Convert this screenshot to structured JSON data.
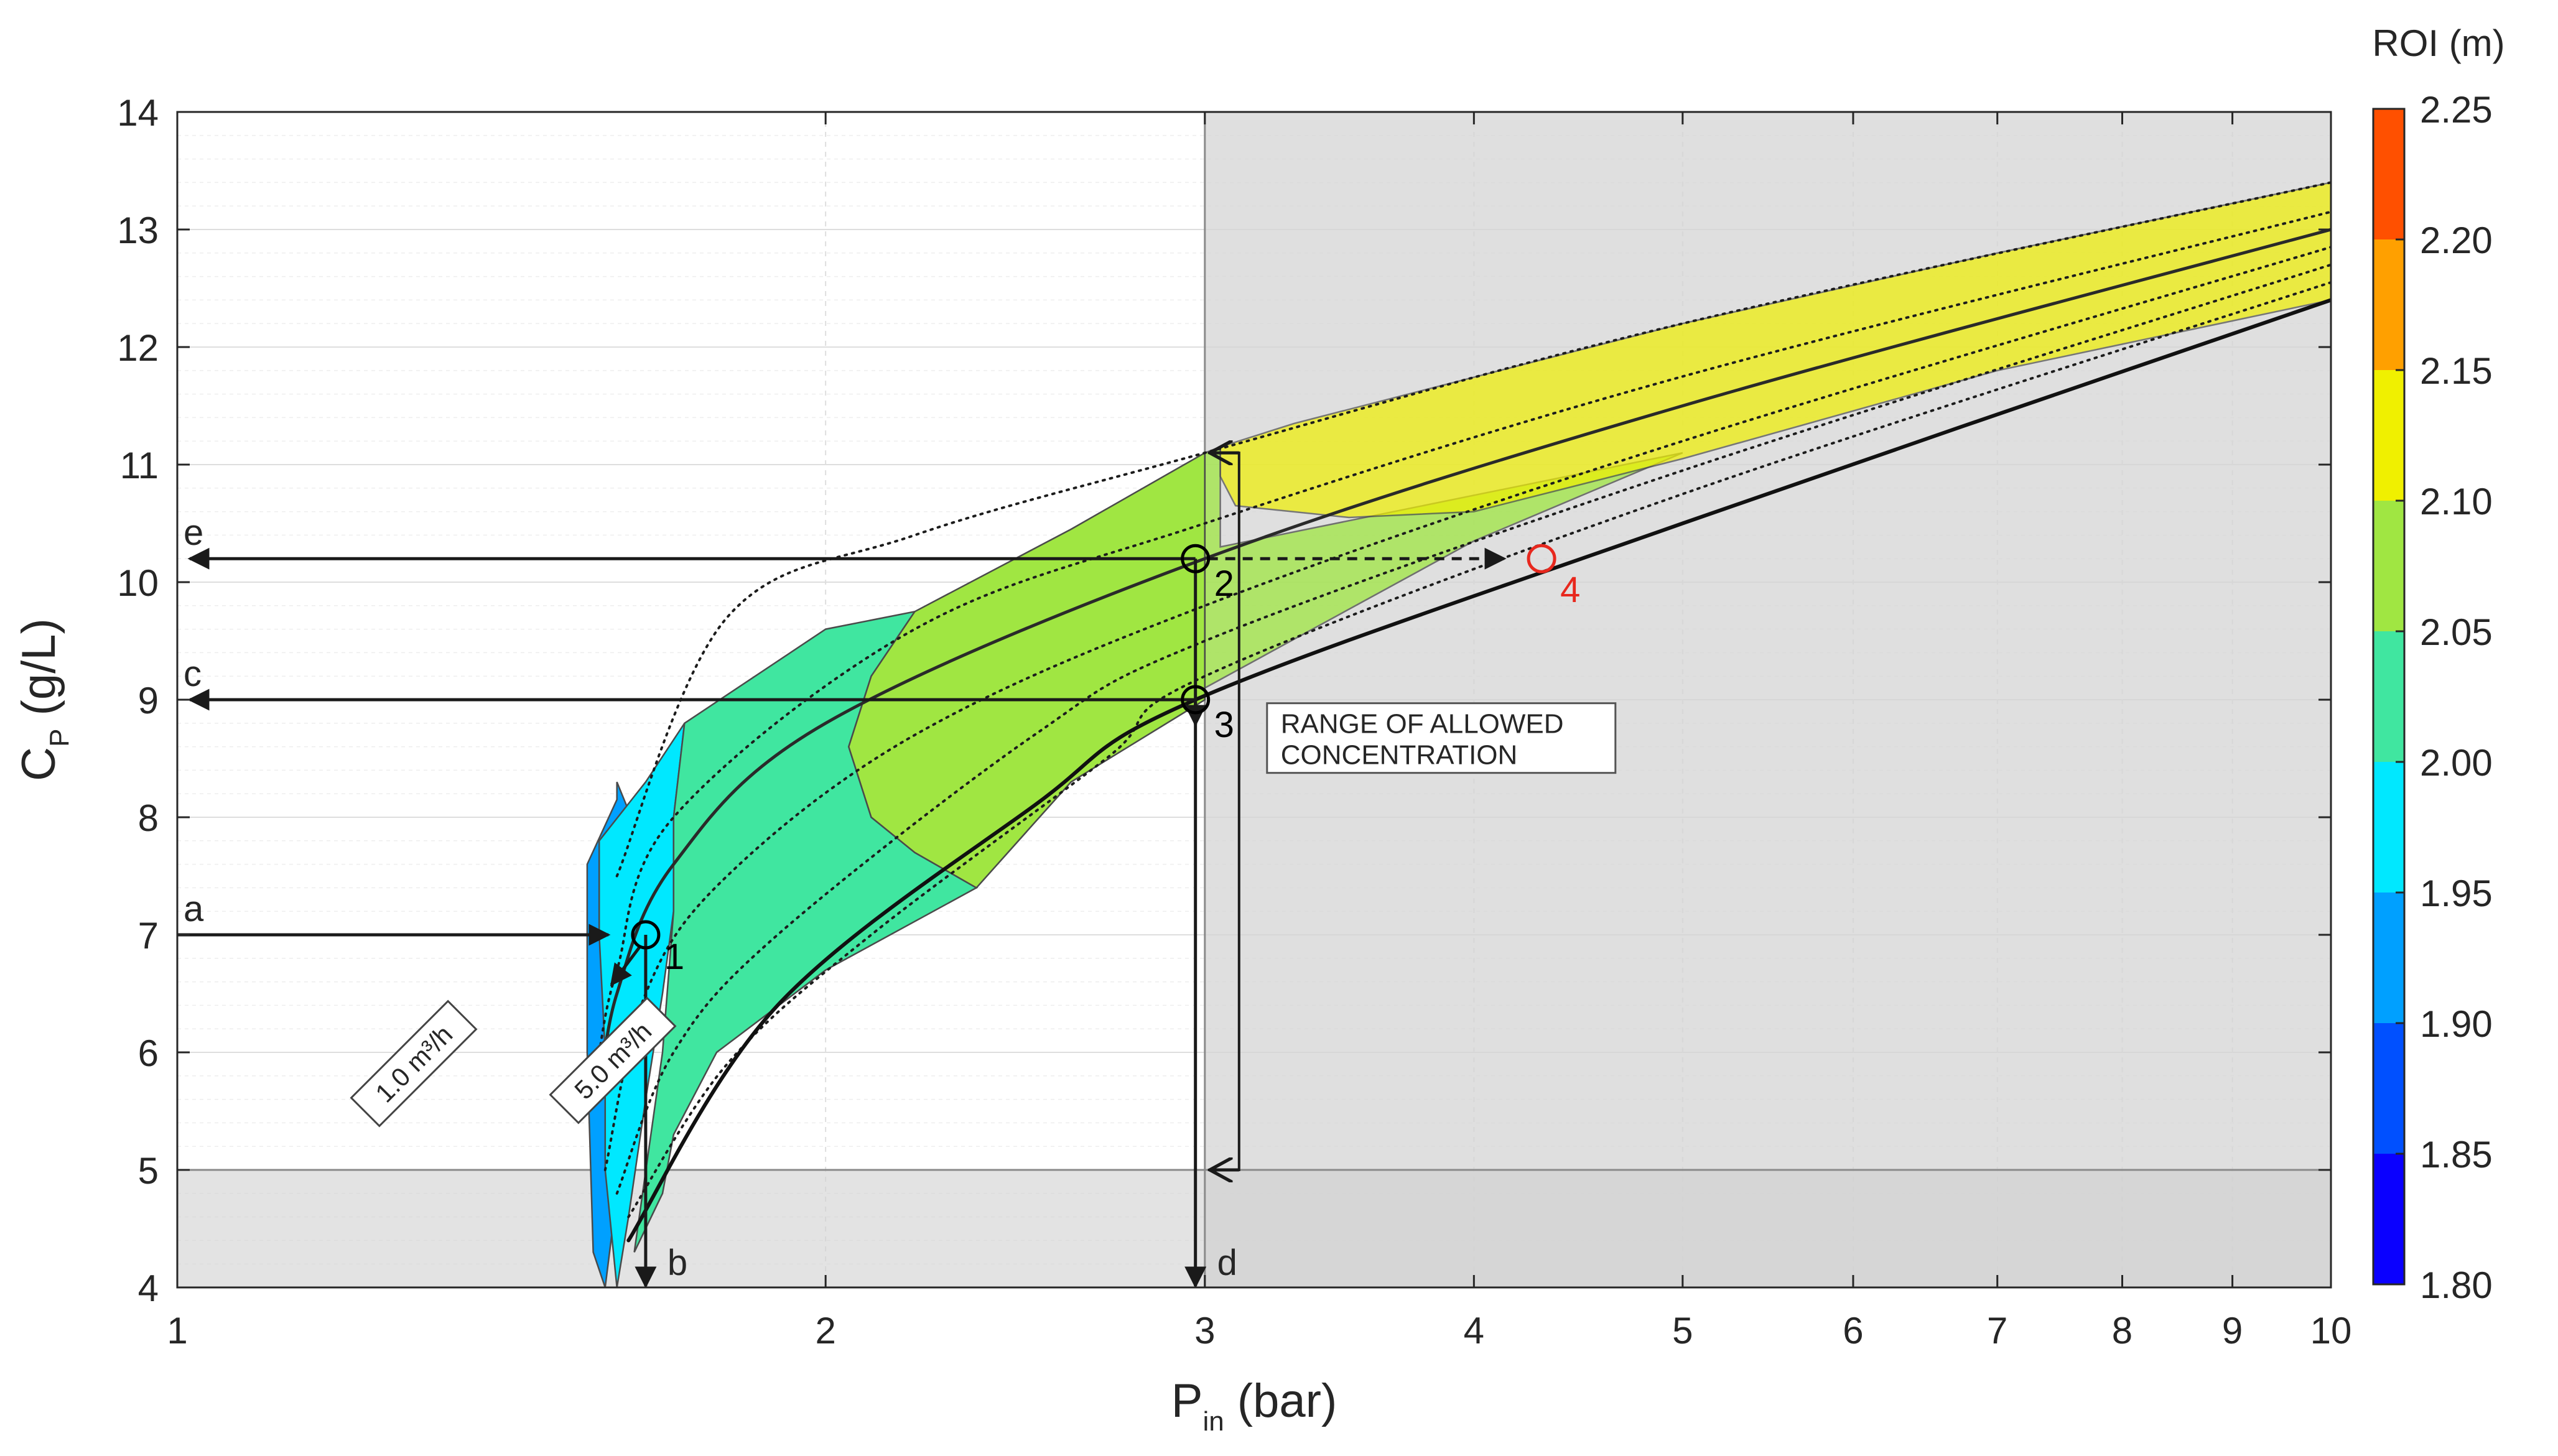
{
  "chart_data": {
    "type": "contour",
    "xlabel": {
      "main": "P",
      "sub": "in",
      "unit": " (bar)"
    },
    "ylabel": {
      "main": "C",
      "sub": "P",
      "unit": " (g/L)"
    },
    "x_scale": "log",
    "xlim": [
      1,
      10
    ],
    "ylim": [
      4,
      14
    ],
    "x_ticks": [
      1,
      2,
      3,
      4,
      5,
      6,
      7,
      8,
      9,
      10
    ],
    "y_ticks": [
      4,
      5,
      6,
      7,
      8,
      9,
      10,
      11,
      12,
      13,
      14
    ],
    "grid": true,
    "colorbar": {
      "title": "ROI (m)",
      "ticks": [
        "1.80",
        "1.85",
        "1.90",
        "1.95",
        "2.00",
        "2.05",
        "2.10",
        "2.15",
        "2.20",
        "2.25"
      ],
      "colors": [
        "#0a00ff",
        "#0050ff",
        "#00a0ff",
        "#00e8ff",
        "#40e6a0",
        "#a0e642",
        "#f0f000",
        "#ffa000",
        "#ff5000"
      ]
    },
    "flow_curves": [
      {
        "label": "1.0 m³/h",
        "points": [
          [
            1.6,
            7.5
          ],
          [
            1.8,
            9.7
          ],
          [
            2.2,
            10.4
          ],
          [
            3.0,
            11.1
          ],
          [
            5.0,
            12.2
          ],
          [
            10.0,
            13.4
          ]
        ]
      },
      {
        "points": [
          [
            1.57,
            6.0
          ],
          [
            1.6,
            6.7
          ],
          [
            1.7,
            8.0
          ],
          [
            2.2,
            9.6
          ],
          [
            3.0,
            10.5
          ],
          [
            5.0,
            11.75
          ],
          [
            10.0,
            13.15
          ]
        ]
      },
      {
        "points": [
          [
            1.57,
            5.6
          ],
          [
            1.6,
            6.5
          ],
          [
            1.7,
            7.6
          ],
          [
            2.0,
            8.8
          ],
          [
            3.0,
            10.2
          ],
          [
            5.0,
            11.5
          ],
          [
            10.0,
            13.0
          ]
        ]
      },
      {
        "points": [
          [
            1.58,
            5.0
          ],
          [
            1.65,
            6.5
          ],
          [
            1.8,
            7.5
          ],
          [
            2.2,
            8.7
          ],
          [
            3.0,
            9.8
          ],
          [
            5.0,
            11.2
          ],
          [
            10.0,
            12.85
          ]
        ]
      },
      {
        "points": [
          [
            1.6,
            4.8
          ],
          [
            1.7,
            6.0
          ],
          [
            1.9,
            7.0
          ],
          [
            2.5,
            8.7
          ],
          [
            3.0,
            9.5
          ],
          [
            5.0,
            10.95
          ],
          [
            10.0,
            12.7
          ]
        ]
      },
      {
        "points": [
          [
            1.62,
            4.6
          ],
          [
            1.8,
            5.9
          ],
          [
            2.1,
            7.0
          ],
          [
            2.7,
            8.5
          ],
          [
            3.0,
            9.2
          ],
          [
            5.0,
            10.75
          ],
          [
            10.0,
            12.55
          ]
        ]
      },
      {
        "label": "5.0 m³/h",
        "points": [
          [
            1.62,
            4.4
          ],
          [
            1.9,
            6.4
          ],
          [
            2.5,
            8.1
          ],
          [
            2.97,
            9.0
          ],
          [
            5.0,
            10.5
          ],
          [
            10.0,
            12.4
          ]
        ]
      }
    ],
    "allowed_range": {
      "label": [
        "RANGE OF ALLOWED",
        "CONCENTRATION"
      ],
      "y_min": 5,
      "y_max": 11.1,
      "p_max": 3
    },
    "points": [
      {
        "label": "1",
        "p": 1.65,
        "cp": 7.0,
        "color": "#000000"
      },
      {
        "label": "2",
        "p": 2.97,
        "cp": 10.2,
        "color": "#000000"
      },
      {
        "label": "3",
        "p": 2.97,
        "cp": 9.0,
        "color": "#000000"
      },
      {
        "label": "4",
        "p": 4.3,
        "cp": 10.2,
        "color": "#e8281e"
      }
    ],
    "arrow_labels": [
      "a",
      "b",
      "c",
      "d",
      "e"
    ],
    "flow_labels": [
      "1.0 m³/h",
      "5.0 m³/h"
    ]
  }
}
